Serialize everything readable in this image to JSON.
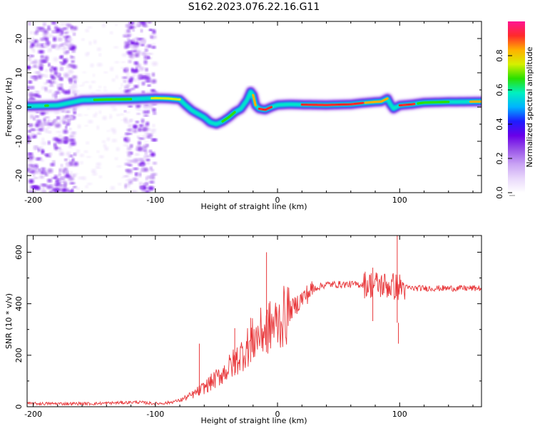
{
  "title": "S162.2023.076.22.16.G11",
  "colors": {
    "snr_line": "#e8383b",
    "spectro_palette": [
      "#ffffff",
      "#e9d8fb",
      "#c9a3f4",
      "#9a55e8",
      "#6a00e8",
      "#1d1dff",
      "#00b3ff",
      "#00f0c0",
      "#29e000",
      "#d6f000",
      "#ffb000",
      "#ff2a2a",
      "#ff1493"
    ]
  },
  "chart_data": [
    {
      "type": "heatmap",
      "xlabel": "Height of straight line (km)",
      "ylabel": "Frequency (Hz)",
      "xlim": [
        -205,
        167
      ],
      "ylim": [
        -25,
        25
      ],
      "xticks": [
        -200,
        -100,
        0,
        100
      ],
      "yticks": [
        -20,
        -10,
        0,
        10,
        20
      ],
      "ridge": {
        "x": [
          -200,
          -180,
          -160,
          -140,
          -120,
          -100,
          -90,
          -80,
          -75,
          -70,
          -65,
          -60,
          -55,
          -50,
          -45,
          -40,
          -35,
          -30,
          -25,
          -22,
          -20,
          -18,
          -15,
          -10,
          -5,
          0,
          10,
          20,
          40,
          60,
          70,
          80,
          85,
          90,
          92,
          95,
          100,
          110,
          120,
          140,
          167
        ],
        "y": [
          0.3,
          0.5,
          2.0,
          2.2,
          2.3,
          2.6,
          2.5,
          2.2,
          0.5,
          -1.0,
          -2.0,
          -3.0,
          -4.5,
          -5.0,
          -4.2,
          -3.0,
          -1.5,
          -0.5,
          2.0,
          4.5,
          3.5,
          0.5,
          -0.5,
          -0.8,
          0.0,
          0.6,
          0.8,
          0.7,
          0.6,
          0.8,
          1.2,
          1.5,
          1.6,
          2.5,
          1.0,
          -0.5,
          0.5,
          0.8,
          1.3,
          1.5,
          1.6
        ]
      },
      "noise_bands": [
        [
          -205,
          -165
        ],
        [
          -125,
          -100
        ]
      ],
      "colorbar": {
        "label": "Normalized spectral amplitude",
        "range": [
          0,
          1
        ],
        "ticks": [
          0.0,
          0.2,
          0.4,
          0.6,
          0.8
        ]
      }
    },
    {
      "type": "line",
      "xlabel": "Height of straight line (km)",
      "ylabel": "SNR (10 * v/v)",
      "xlim": [
        -205,
        167
      ],
      "ylim": [
        0,
        665
      ],
      "xticks": [
        -200,
        -100,
        0,
        100
      ],
      "yticks": [
        0,
        200,
        400,
        600
      ],
      "envelope": {
        "x": [
          -205,
          -150,
          -115,
          -100,
          -90,
          -80,
          -70,
          -60,
          -50,
          -40,
          -30,
          -20,
          -10,
          0,
          10,
          20,
          30,
          40,
          60,
          80,
          90,
          100,
          110,
          167
        ],
        "y": [
          12,
          12,
          18,
          12,
          15,
          25,
          45,
          75,
          110,
          150,
          200,
          260,
          300,
          325,
          370,
          420,
          460,
          475,
          475,
          475,
          470,
          465,
          460,
          460
        ]
      },
      "spikes": [
        {
          "x": -64,
          "y": 245
        },
        {
          "x": -35,
          "y": 305
        },
        {
          "x": -22,
          "y": 345
        },
        {
          "x": -9,
          "y": 600
        },
        {
          "x": 78,
          "y": 540
        },
        {
          "x": 98,
          "y": 665
        },
        {
          "x": 99,
          "y": 245
        }
      ]
    }
  ]
}
